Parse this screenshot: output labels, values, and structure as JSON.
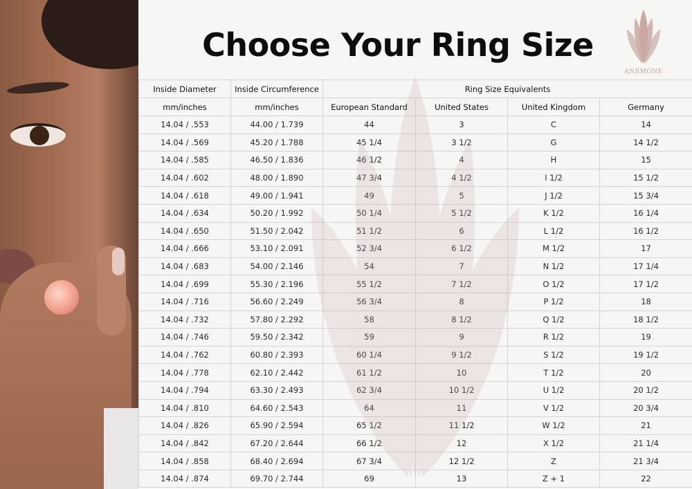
{
  "title": "Choose Your Ring Size",
  "logo": {
    "name": "ANEMONE",
    "color": "#c3a39c"
  },
  "table": {
    "header_row1": [
      "Inside Diameter",
      "Inside Circumference",
      "Ring Size Equivalents"
    ],
    "header_row2": [
      "mm/inches",
      "mm/inches",
      "European Standard",
      "United States",
      "United Kingdom",
      "Germany"
    ],
    "rows": [
      [
        "14.04 / .553",
        "44.00 / 1.739",
        "44",
        "3",
        "C",
        "14"
      ],
      [
        "14.04 / .569",
        "45.20 / 1.788",
        "45 1/4",
        "3 1/2",
        "G",
        "14 1/2"
      ],
      [
        "14.04 / .585",
        "46.50 / 1.836",
        "46 1/2",
        "4",
        "H",
        "15"
      ],
      [
        "14.04 / .602",
        "48.00 / 1.890",
        "47 3/4",
        "4 1/2",
        "I 1/2",
        "15 1/2"
      ],
      [
        "14.04 / .618",
        "49.00 / 1.941",
        "49",
        "5",
        "J 1/2",
        "15 3/4"
      ],
      [
        "14.04 / .634",
        "50.20 / 1.992",
        "50 1/4",
        "5 1/2",
        "K 1/2",
        "16 1/4"
      ],
      [
        "14.04 / .650",
        "51.50 / 2.042",
        "51 1/2",
        "6",
        "L 1/2",
        "16 1/2"
      ],
      [
        "14.04 / .666",
        "53.10 / 2.091",
        "52 3/4",
        "6 1/2",
        "M 1/2",
        "17"
      ],
      [
        "14.04 / .683",
        "54.00 / 2.146",
        "54",
        "7",
        "N 1/2",
        "17 1/4"
      ],
      [
        "14.04 / .699",
        "55.30 / 2.196",
        "55 1/2",
        "7 1/2",
        "O 1/2",
        "17 1/2"
      ],
      [
        "14.04 / .716",
        "56.60 / 2.249",
        "56 3/4",
        "8",
        "P 1/2",
        "18"
      ],
      [
        "14.04 / .732",
        "57.80 / 2.292",
        "58",
        "8 1/2",
        "Q 1/2",
        "18 1/2"
      ],
      [
        "14.04 / .746",
        "59.50 / 2.342",
        "59",
        "9",
        "R 1/2",
        "19"
      ],
      [
        "14.04 / .762",
        "60.80 / 2.393",
        "60 1/4",
        "9 1/2",
        "S 1/2",
        "19 1/2"
      ],
      [
        "14.04 / .778",
        "62.10 / 2.442",
        "61 1/2",
        "10",
        "T 1/2",
        "20"
      ],
      [
        "14.04 / .794",
        "63.30 / 2.493",
        "62 3/4",
        "10 1/2",
        "U 1/2",
        "20 1/2"
      ],
      [
        "14.04 / .810",
        "64.60 / 2.543",
        "64",
        "11",
        "V 1/2",
        "20 3/4"
      ],
      [
        "14.04 / .826",
        "65.90 / 2.594",
        "65 1/2",
        "11 1/2",
        "W 1/2",
        "21"
      ],
      [
        "14.04 / .842",
        "67.20 / 2.644",
        "66 1/2",
        "12",
        "X 1/2",
        "21 1/4"
      ],
      [
        "14.04 / .858",
        "68.40 / 2.694",
        "67 3/4",
        "12 1/2",
        "Z",
        "21 3/4"
      ],
      [
        "14.04 / .874",
        "69.70 / 2.744",
        "69",
        "13",
        "Z + 1",
        "22"
      ]
    ]
  }
}
